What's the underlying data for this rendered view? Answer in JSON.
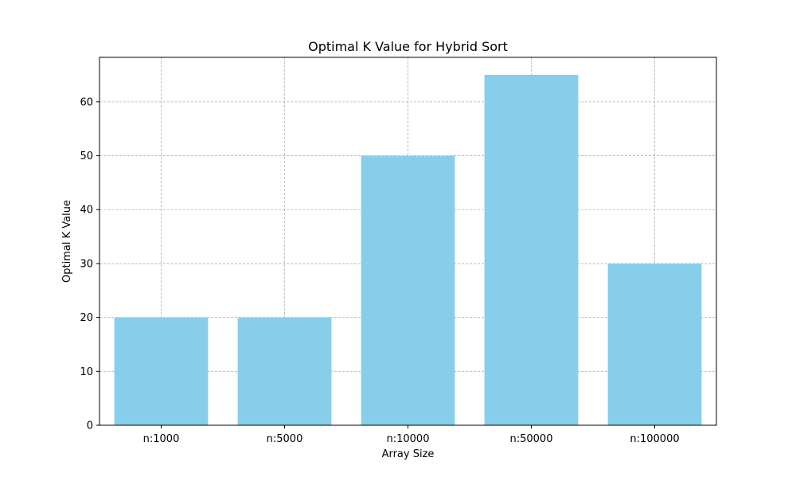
{
  "chart_data": {
    "type": "bar",
    "title": "Optimal K Value for Hybrid Sort",
    "xlabel": "Array Size",
    "ylabel": "Optimal K Value",
    "categories": [
      "n:1000",
      "n:5000",
      "n:10000",
      "n:50000",
      "n:100000"
    ],
    "values": [
      20,
      20,
      50,
      65,
      30
    ],
    "ylim": [
      0,
      68.25
    ],
    "yticks": [
      0,
      10,
      20,
      30,
      40,
      50,
      60
    ],
    "grid": true,
    "legend": "none",
    "colors": {
      "bar": "#87ceeb",
      "grid": "#b0b0b0",
      "axis": "#000000"
    }
  }
}
